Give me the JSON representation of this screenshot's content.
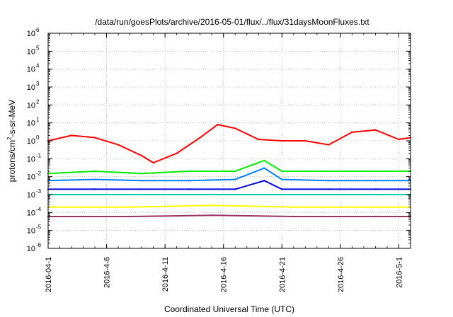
{
  "chart_data": {
    "type": "line",
    "title": "/data/run/goesPlots/archive/2016-05-01/flux/../flux/31daysMoonFluxes.txt",
    "xlabel": "Coordinated Universal Time (UTC)",
    "ylabel": {
      "prefix": "protons/cm",
      "superscript": "2",
      "suffix": "-s-sr-MeV"
    },
    "y_scale": "log",
    "ylim": [
      1e-06,
      1000000.0
    ],
    "y_ticks": [
      {
        "value": -6,
        "base": "10",
        "exp": "-6"
      },
      {
        "value": -5,
        "base": "10",
        "exp": "-5"
      },
      {
        "value": -4,
        "base": "10",
        "exp": "-4"
      },
      {
        "value": -3,
        "base": "10",
        "exp": "-3"
      },
      {
        "value": -2,
        "base": "10",
        "exp": "-2"
      },
      {
        "value": -1,
        "base": "10",
        "exp": "-1"
      },
      {
        "value": 0,
        "base": "10",
        "exp": "0"
      },
      {
        "value": 1,
        "base": "10",
        "exp": "1"
      },
      {
        "value": 2,
        "base": "10",
        "exp": "2"
      },
      {
        "value": 3,
        "base": "10",
        "exp": "3"
      },
      {
        "value": 4,
        "base": "10",
        "exp": "4"
      },
      {
        "value": 5,
        "base": "10",
        "exp": "5"
      },
      {
        "value": 6,
        "base": "10",
        "exp": "6"
      }
    ],
    "xlim": [
      "2016-04-01",
      "2016-05-02"
    ],
    "x_ticks": [
      {
        "date": "2016-04-01",
        "label": "2016-04-1"
      },
      {
        "date": "2016-04-06",
        "label": "2016-4-6"
      },
      {
        "date": "2016-04-11",
        "label": "2016-4-11"
      },
      {
        "date": "2016-04-16",
        "label": "2016-4-16"
      },
      {
        "date": "2016-04-21",
        "label": "2016-4-21"
      },
      {
        "date": "2016-04-26",
        "label": "2016-4-26"
      },
      {
        "date": "2016-05-01",
        "label": "2016-5-1"
      }
    ],
    "grid": true,
    "legend": "none",
    "series": [
      {
        "color": "#ff0000",
        "date": [
          "2016-04-01",
          "2016-04-03",
          "2016-04-05",
          "2016-04-07",
          "2016-04-09",
          "2016-04-10",
          "2016-04-12",
          "2016-04-14",
          "2016-04-15.5",
          "2016-04-17",
          "2016-04-19",
          "2016-04-21",
          "2016-04-23",
          "2016-04-25",
          "2016-04-27",
          "2016-04-29",
          "2016-05-01",
          "2016-05-02"
        ],
        "y": [
          1.0,
          2.0,
          1.5,
          0.6,
          0.15,
          0.06,
          0.2,
          1.5,
          8,
          5,
          1.2,
          1.0,
          1.0,
          0.6,
          3,
          4,
          1.2,
          1.5
        ]
      },
      {
        "color": "#00ee00",
        "date": [
          "2016-04-01",
          "2016-04-05",
          "2016-04-09",
          "2016-04-13",
          "2016-04-17",
          "2016-04-19.5",
          "2016-04-21",
          "2016-04-25",
          "2016-04-29",
          "2016-05-02"
        ],
        "y": [
          0.015,
          0.02,
          0.015,
          0.02,
          0.02,
          0.08,
          0.02,
          0.02,
          0.02,
          0.02
        ]
      },
      {
        "color": "#0080ff",
        "date": [
          "2016-04-01",
          "2016-04-05",
          "2016-04-09",
          "2016-04-13",
          "2016-04-17",
          "2016-04-19.5",
          "2016-04-21",
          "2016-04-25",
          "2016-04-29",
          "2016-05-02"
        ],
        "y": [
          0.006,
          0.007,
          0.006,
          0.006,
          0.007,
          0.03,
          0.007,
          0.006,
          0.006,
          0.006
        ]
      },
      {
        "color": "#0000dd",
        "date": [
          "2016-04-01",
          "2016-04-05",
          "2016-04-09",
          "2016-04-13",
          "2016-04-17",
          "2016-04-19.5",
          "2016-04-21",
          "2016-04-25",
          "2016-04-29",
          "2016-05-02"
        ],
        "y": [
          0.002,
          0.002,
          0.002,
          0.002,
          0.002,
          0.006,
          0.002,
          0.002,
          0.002,
          0.002
        ]
      },
      {
        "color": "#00d0b0",
        "date": [
          "2016-04-01",
          "2016-04-08",
          "2016-04-15",
          "2016-04-22",
          "2016-04-29",
          "2016-05-02"
        ],
        "y": [
          0.001,
          0.001,
          0.001,
          0.001,
          0.001,
          0.001
        ]
      },
      {
        "color": "#ffff00",
        "date": [
          "2016-04-01",
          "2016-04-08",
          "2016-04-15",
          "2016-04-22",
          "2016-04-29",
          "2016-05-02"
        ],
        "y": [
          0.0002,
          0.0002,
          0.00025,
          0.0002,
          0.0002,
          0.0002
        ]
      },
      {
        "color": "#993366",
        "date": [
          "2016-04-01",
          "2016-04-08",
          "2016-04-15",
          "2016-04-22",
          "2016-04-29",
          "2016-05-02"
        ],
        "y": [
          6e-05,
          6e-05,
          7e-05,
          6e-05,
          6e-05,
          6e-05
        ]
      }
    ]
  }
}
